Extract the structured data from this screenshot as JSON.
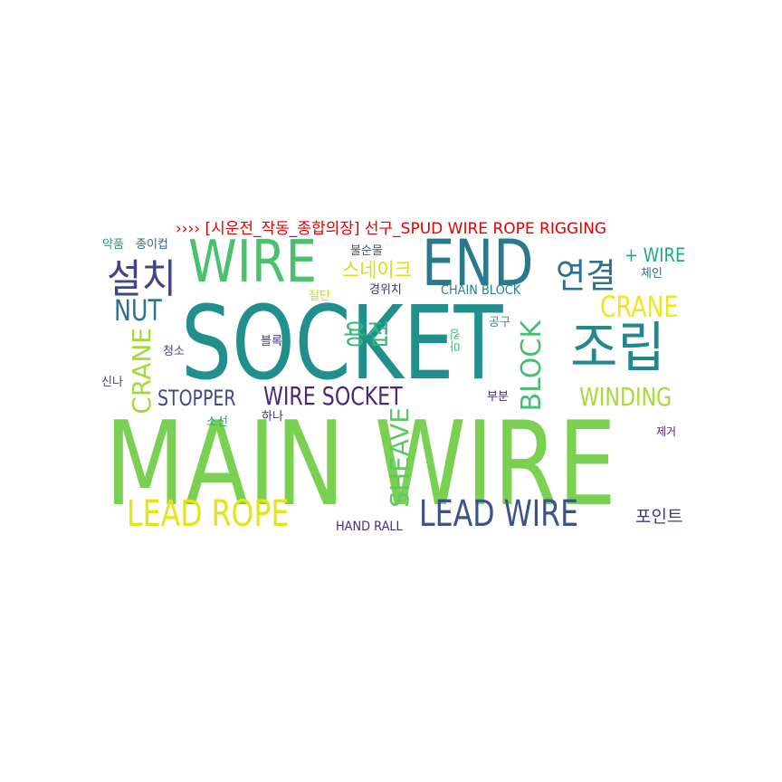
{
  "title": "›››› [시운전_작동_종합의장] 선구_SPUD WIRE ROPE RIGGING",
  "words": [
    {
      "text": "MAIN WIRE",
      "color": "#7ad151"
    },
    {
      "text": "SOCKET",
      "color": "#21908d"
    },
    {
      "text": "WIRE",
      "color": "#4ac16d"
    },
    {
      "text": "END",
      "color": "#2a788e"
    },
    {
      "text": "조립",
      "color": "#23888e"
    },
    {
      "text": "LEAD ROPE",
      "color": "#e5e419"
    },
    {
      "text": "LEAD WIRE",
      "color": "#3b528b"
    },
    {
      "text": "WIRE SOCKET",
      "color": "#482878"
    },
    {
      "text": "설치",
      "color": "#414487"
    },
    {
      "text": "연결",
      "color": "#2c728e"
    },
    {
      "text": "CRANE",
      "color": "#f1e51d"
    },
    {
      "text": "NUT",
      "color": "#2c728e"
    },
    {
      "text": "용접",
      "color": "#35b779"
    },
    {
      "text": "스네이크",
      "color": "#d2e21b"
    },
    {
      "text": "WINDING",
      "color": "#a5db36"
    },
    {
      "text": "STOPPER",
      "color": "#3e4a89"
    },
    {
      "text": "BLOCK",
      "color": "#44bf70"
    },
    {
      "text": "SHEAVE",
      "color": "#5cc863"
    },
    {
      "text": "CRANE",
      "color": "#a0da39"
    },
    {
      "text": "+ WIRE",
      "color": "#22a884"
    },
    {
      "text": "포인트",
      "color": "#443983"
    },
    {
      "text": "HAND RALL",
      "color": "#472d7b"
    },
    {
      "text": "CHAIN BLOCK",
      "color": "#26828e"
    },
    {
      "text": "약품",
      "color": "#1fa188"
    },
    {
      "text": "종이컵",
      "color": "#31688e"
    },
    {
      "text": "불순물",
      "color": "#3b528b"
    },
    {
      "text": "체인",
      "color": "#2a788e"
    },
    {
      "text": "절단",
      "color": "#bddf26"
    },
    {
      "text": "경위치",
      "color": "#46327e"
    },
    {
      "text": "공구",
      "color": "#1f9e89"
    },
    {
      "text": "마킹",
      "color": "#3fbc73"
    },
    {
      "text": "블록",
      "color": "#443a83"
    },
    {
      "text": "청소",
      "color": "#3e4989"
    },
    {
      "text": "신나",
      "color": "#404688"
    },
    {
      "text": "부분",
      "color": "#472c7a"
    },
    {
      "text": "소선",
      "color": "#20a386"
    },
    {
      "text": "하나",
      "color": "#46307e"
    },
    {
      "text": "제거",
      "color": "#481f70"
    }
  ]
}
